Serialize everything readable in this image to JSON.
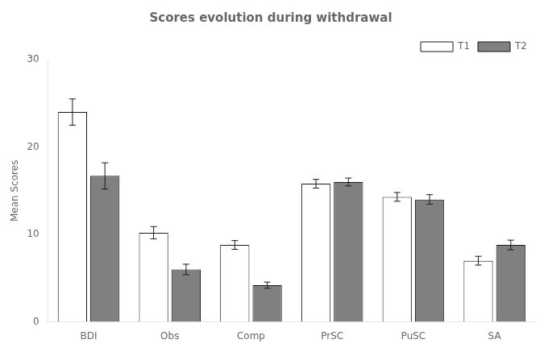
{
  "chart_data": {
    "type": "bar",
    "title": "Scores evolution during withdrawal",
    "ylabel": "Mean Scores",
    "categories": [
      "BDI",
      "Obs",
      "Comp",
      "PrSC",
      "PuSC",
      "SA"
    ],
    "series": [
      {
        "name": "T1",
        "color": "#FFFFFF",
        "values": [
          24.0,
          10.2,
          8.8,
          15.8,
          14.3,
          7.0
        ],
        "errors": [
          1.5,
          0.7,
          0.5,
          0.5,
          0.5,
          0.5
        ]
      },
      {
        "name": "T2",
        "color": "#808080",
        "values": [
          16.7,
          6.0,
          4.2,
          16.0,
          14.0,
          8.8
        ],
        "errors": [
          1.5,
          0.6,
          0.35,
          0.45,
          0.55,
          0.55
        ]
      }
    ],
    "ylim": [
      0,
      30
    ],
    "yticks": [
      0,
      10,
      20,
      30
    ],
    "grid": false,
    "legend": "upper right"
  }
}
